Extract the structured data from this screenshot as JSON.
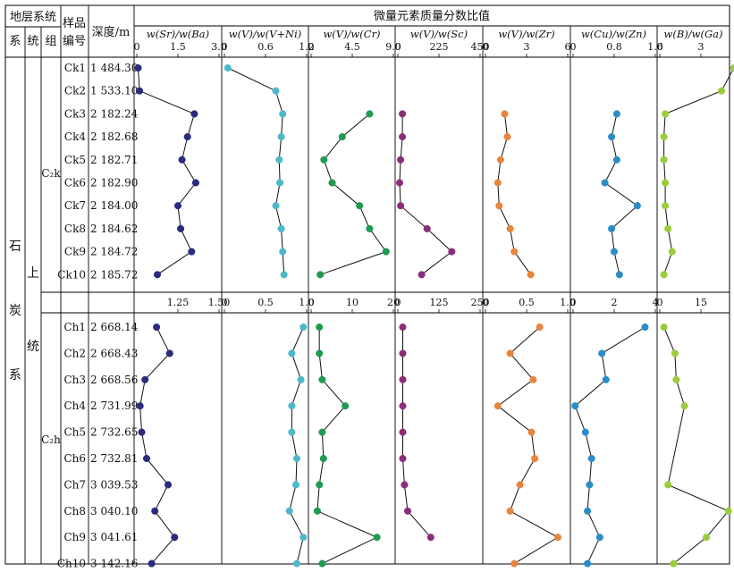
{
  "header": {
    "stratigraphy": "地层系统",
    "system_col": "系",
    "series_col": "统",
    "group_col": "组",
    "sample_col_line1": "样品",
    "sample_col_line2": "编号",
    "depth_col": "深度/m",
    "ratio_title": "微量元素质量分数比值"
  },
  "strata": {
    "system": [
      "石",
      "炭",
      "系"
    ],
    "series_upper": "上",
    "series_lower": "统",
    "formation_k": "C₂k",
    "formation_h": "C₂h"
  },
  "chart_data": {
    "type": "line",
    "panels": [
      {
        "title": "w(Sr)/w(Ba)",
        "color": "#2a2a7e",
        "top_axis": {
          "range": [
            0,
            3.0
          ],
          "ticks": [
            "0",
            "1.5",
            "3.0"
          ]
        },
        "mid_axis": {
          "range": [
            1.0,
            1.5
          ],
          "ticks": [
            "1.25",
            "1.50"
          ]
        },
        "ck_values": [
          0.05,
          0.1,
          2.1,
          1.85,
          1.65,
          2.15,
          1.5,
          1.6,
          2.0,
          0.75
        ],
        "ch_values": [
          1.12,
          1.2,
          1.05,
          1.02,
          1.03,
          1.06,
          1.19,
          1.11,
          1.23,
          1.09
        ]
      },
      {
        "title": "w(V)/w(V+Ni)",
        "color": "#4db8c9",
        "top_axis": {
          "range": [
            0,
            1.2
          ],
          "ticks": [
            "0",
            "0.6",
            "1.2"
          ]
        },
        "mid_axis": {
          "range": [
            0,
            1.0
          ],
          "ticks": [
            "0",
            "0.5",
            "1.0"
          ]
        },
        "ck_values": [
          0.05,
          0.75,
          0.85,
          0.83,
          0.8,
          0.81,
          0.75,
          0.83,
          0.85,
          0.87
        ],
        "ch_values": [
          0.96,
          0.82,
          0.93,
          0.82,
          0.82,
          0.88,
          0.87,
          0.79,
          0.96,
          0.88
        ]
      },
      {
        "title": "w(V)/w(Cr)",
        "color": "#1e9b4f",
        "top_axis": {
          "range": [
            0,
            9.0
          ],
          "ticks": [
            "0",
            "4.5",
            "9.0"
          ]
        },
        "mid_axis": {
          "range": [
            0,
            20
          ],
          "ticks": [
            "0",
            "10",
            "20"
          ]
        },
        "ck_values": [
          null,
          null,
          6.4,
          3.4,
          1.4,
          2.3,
          5.3,
          6.4,
          8.2,
          1.0
        ],
        "ch_values": [
          2.0,
          2.0,
          2.7,
          8.3,
          2.7,
          3.0,
          2.0,
          1.5,
          16.0,
          2.7
        ]
      },
      {
        "title": "w(V)/w(Sc)",
        "color": "#8b2e7a",
        "top_axis": {
          "range": [
            0,
            450
          ],
          "ticks": [
            "0",
            "225",
            "450"
          ]
        },
        "mid_axis": {
          "range": [
            0,
            250
          ],
          "ticks": [
            "0",
            "125",
            "250"
          ]
        },
        "ck_values": [
          null,
          null,
          25,
          25,
          15,
          10,
          15,
          160,
          295,
          130
        ],
        "ch_values": [
          15,
          15,
          15,
          15,
          15,
          15,
          20,
          30,
          100,
          null
        ]
      },
      {
        "title": "w(V)/w(Zr)",
        "color": "#e8853d",
        "top_axis": {
          "range": [
            0,
            6
          ],
          "ticks": [
            "0",
            "3",
            "6"
          ]
        },
        "mid_axis": {
          "range": [
            0,
            1.0
          ],
          "ticks": [
            "0",
            "0.5",
            "1.0"
          ]
        },
        "ck_values": [
          null,
          null,
          1.4,
          1.6,
          1.1,
          0.9,
          1.0,
          1.8,
          2.1,
          3.3
        ],
        "ch_values": [
          0.66,
          0.3,
          0.58,
          0.15,
          0.56,
          0.6,
          0.42,
          0.3,
          0.88,
          0.35
        ]
      },
      {
        "title": "w(Cu)/w(Zn)",
        "color": "#2a8dc7",
        "top_axis": {
          "range": [
            0,
            1.6
          ],
          "ticks": [
            "0",
            "0.8",
            "1.6"
          ]
        },
        "mid_axis": {
          "range": [
            0,
            4
          ],
          "ticks": [
            "0",
            "2",
            "4"
          ]
        },
        "ck_values": [
          null,
          null,
          0.85,
          0.75,
          0.85,
          0.62,
          1.25,
          0.75,
          0.8,
          0.9
        ],
        "ch_values": [
          3.5,
          1.4,
          1.6,
          0.1,
          0.6,
          0.9,
          0.8,
          0.7,
          1.3,
          0.7
        ]
      },
      {
        "title": "w(B)/w(Ga)",
        "color": "#9acc3b",
        "top_axis": {
          "range": [
            0,
            6
          ],
          "ticks": [
            "0",
            "3",
            "6"
          ]
        },
        "mid_axis": {
          "range": [
            0,
            30
          ],
          "ticks": [
            "0",
            "15",
            "30"
          ]
        },
        "ck_values": [
          5.4,
          4.5,
          0.4,
          0.3,
          0.3,
          0.4,
          0.4,
          0.6,
          0.9,
          0.3
        ],
        "ch_values": [
          1.5,
          5.5,
          6.0,
          9.0,
          null,
          null,
          3.0,
          25.0,
          17.0,
          5.0
        ]
      }
    ],
    "ck_samples": [
      {
        "id": "Ck1",
        "depth": "1 484.30"
      },
      {
        "id": "Ck2",
        "depth": "1 533.10"
      },
      {
        "id": "Ck3",
        "depth": "2 182.24"
      },
      {
        "id": "Ck4",
        "depth": "2 182.68"
      },
      {
        "id": "Ck5",
        "depth": "2 182.71"
      },
      {
        "id": "Ck6",
        "depth": "2 182.90"
      },
      {
        "id": "Ck7",
        "depth": "2 184.00"
      },
      {
        "id": "Ck8",
        "depth": "2 184.62"
      },
      {
        "id": "Ck9",
        "depth": "2 184.72"
      },
      {
        "id": "Ck10",
        "depth": "2 185.72"
      }
    ],
    "ch_samples": [
      {
        "id": "Ch1",
        "depth": "2 668.14"
      },
      {
        "id": "Ch2",
        "depth": "2 668.43"
      },
      {
        "id": "Ch3",
        "depth": "2 668.56"
      },
      {
        "id": "Ch4",
        "depth": "2 731.99"
      },
      {
        "id": "Ch5",
        "depth": "2 732.65"
      },
      {
        "id": "Ch6",
        "depth": "2 732.81"
      },
      {
        "id": "Ch7",
        "depth": "3 039.53"
      },
      {
        "id": "Ch8",
        "depth": "3 040.10"
      },
      {
        "id": "Ch9",
        "depth": "3 041.61"
      },
      {
        "id": "Ch10",
        "depth": "3 142.16"
      }
    ]
  }
}
